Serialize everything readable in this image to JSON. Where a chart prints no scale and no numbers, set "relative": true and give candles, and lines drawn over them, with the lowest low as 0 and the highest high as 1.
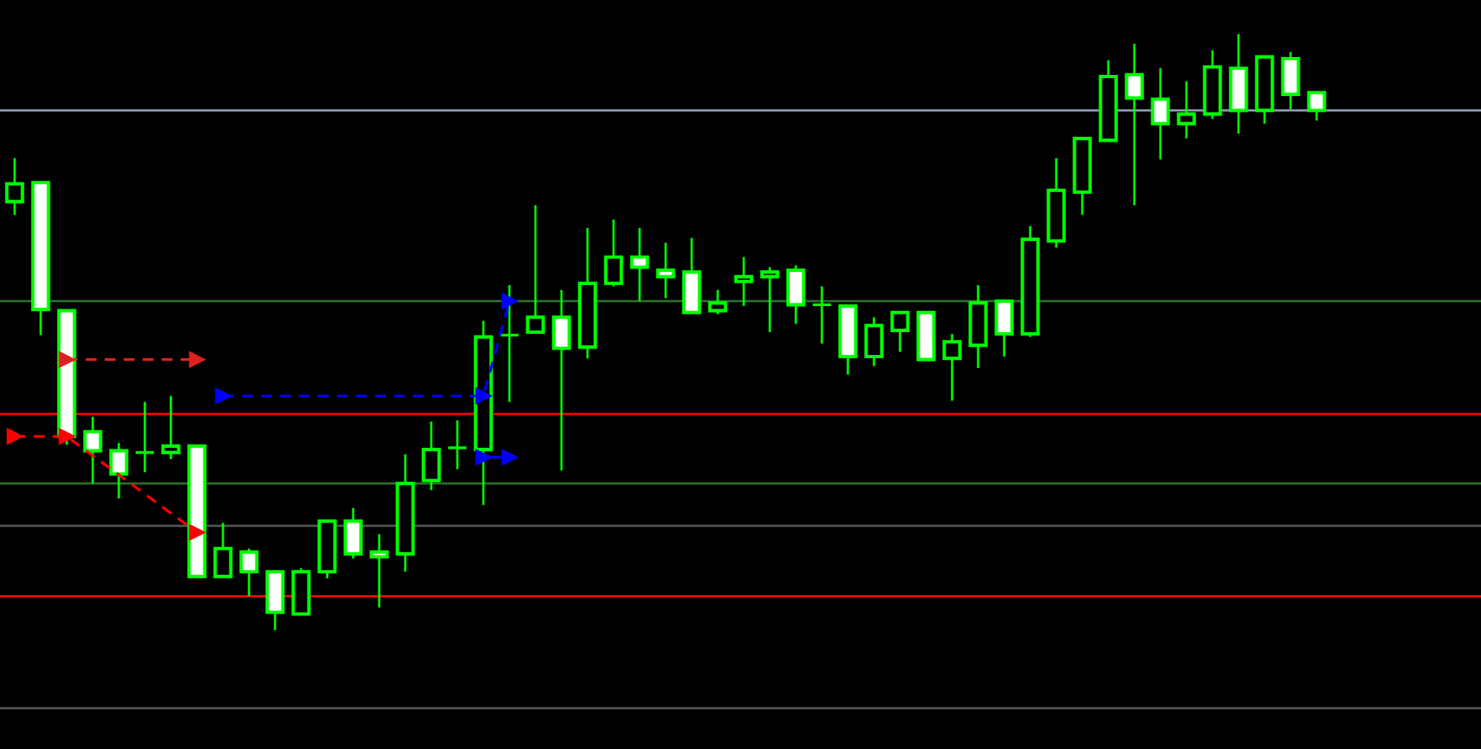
{
  "chart_data": {
    "type": "candlestick",
    "relative": true,
    "color": "#00ff00",
    "grid": false,
    "legend": false,
    "categories": [
      null,
      null,
      null,
      null,
      null,
      null,
      null,
      null,
      null,
      null,
      null,
      null,
      null,
      null,
      null,
      null,
      null,
      null,
      null,
      null,
      null,
      null,
      null,
      null,
      null,
      null,
      null,
      null,
      null,
      null,
      null,
      null,
      null,
      null,
      null,
      null,
      null,
      null,
      null,
      null,
      null,
      null,
      null,
      null,
      null,
      null,
      null,
      null,
      null,
      null,
      null
    ],
    "ohlc": [
      [
        0.719,
        0.792,
        0.697,
        0.749
      ],
      [
        0.751,
        0.751,
        0.495,
        0.538
      ],
      [
        0.536,
        0.536,
        0.311,
        0.325
      ],
      [
        0.333,
        0.358,
        0.246,
        0.301
      ],
      [
        0.301,
        0.314,
        0.221,
        0.262
      ],
      [
        0.298,
        0.383,
        0.265,
        0.298
      ],
      [
        0.298,
        0.393,
        0.287,
        0.309
      ],
      [
        0.309,
        0.309,
        0.09,
        0.09
      ],
      [
        0.09,
        0.18,
        0.09,
        0.137
      ],
      [
        0.131,
        0.137,
        0.057,
        0.098
      ],
      [
        0.098,
        0.098,
        0,
        0.03
      ],
      [
        0.027,
        0.104,
        0.027,
        0.098
      ],
      [
        0.098,
        0.183,
        0.087,
        0.183
      ],
      [
        0.183,
        0.205,
        0.12,
        0.128
      ],
      [
        0.131,
        0.161,
        0.038,
        0.123
      ],
      [
        0.128,
        0.295,
        0.098,
        0.246
      ],
      [
        0.251,
        0.35,
        0.235,
        0.303
      ],
      [
        0.306,
        0.352,
        0.27,
        0.306
      ],
      [
        0.303,
        0.519,
        0.21,
        0.492
      ],
      [
        0.495,
        0.579,
        0.383,
        0.495
      ],
      [
        0.5,
        0.713,
        0.5,
        0.525
      ],
      [
        0.525,
        0.571,
        0.268,
        0.473
      ],
      [
        0.475,
        0.675,
        0.456,
        0.582
      ],
      [
        0.582,
        0.689,
        0.577,
        0.626
      ],
      [
        0.626,
        0.675,
        0.552,
        0.609
      ],
      [
        0.604,
        0.65,
        0.557,
        0.593
      ],
      [
        0.601,
        0.658,
        0.533,
        0.533
      ],
      [
        0.536,
        0.571,
        0.53,
        0.549
      ],
      [
        0.585,
        0.626,
        0.544,
        0.593
      ],
      [
        0.593,
        0.609,
        0.5,
        0.601
      ],
      [
        0.604,
        0.612,
        0.514,
        0.546
      ],
      [
        0.546,
        0.577,
        0.481,
        0.546
      ],
      [
        0.544,
        0.544,
        0.429,
        0.459
      ],
      [
        0.459,
        0.525,
        0.443,
        0.511
      ],
      [
        0.503,
        0.533,
        0.467,
        0.533
      ],
      [
        0.533,
        0.533,
        0.454,
        0.454
      ],
      [
        0.456,
        0.497,
        0.385,
        0.484
      ],
      [
        0.478,
        0.579,
        0.44,
        0.549
      ],
      [
        0.552,
        0.555,
        0.459,
        0.497
      ],
      [
        0.497,
        0.678,
        0.492,
        0.656
      ],
      [
        0.653,
        0.792,
        0.642,
        0.738
      ],
      [
        0.735,
        0.825,
        0.697,
        0.825
      ],
      [
        0.822,
        0.956,
        0.822,
        0.929
      ],
      [
        0.932,
        0.984,
        0.713,
        0.893
      ],
      [
        0.891,
        0.943,
        0.79,
        0.85
      ],
      [
        0.85,
        0.921,
        0.825,
        0.866
      ],
      [
        0.866,
        0.973,
        0.858,
        0.945
      ],
      [
        0.943,
        1,
        0.833,
        0.872
      ],
      [
        0.872,
        0.964,
        0.85,
        0.962
      ],
      [
        0.959,
        0.97,
        0.874,
        0.899
      ],
      [
        0.902,
        0.902,
        0.855,
        0.872
      ]
    ],
    "series": [
      {
        "type": "line",
        "line_style": "dashed",
        "marker": "triangle",
        "color": "#ff0000",
        "values": [
          0.325,
          null,
          0.325,
          null,
          null,
          null,
          null,
          0.164,
          null,
          null,
          null,
          null,
          null,
          null,
          null,
          null,
          null,
          null,
          null,
          null,
          null,
          null,
          null,
          null,
          null,
          null,
          null,
          null,
          null,
          null,
          null,
          null,
          null,
          null,
          null,
          null,
          null,
          null,
          null,
          null,
          null,
          null,
          null,
          null,
          null,
          null,
          null,
          null,
          null,
          null,
          null
        ]
      },
      {
        "type": "line",
        "line_style": "dashed",
        "marker": "triangle",
        "color": "#e02020",
        "values": [
          null,
          null,
          0.454,
          null,
          null,
          null,
          null,
          0.454,
          null,
          null,
          null,
          null,
          null,
          null,
          null,
          null,
          null,
          null,
          null,
          null,
          null,
          null,
          null,
          null,
          null,
          null,
          null,
          null,
          null,
          null,
          null,
          null,
          null,
          null,
          null,
          null,
          null,
          null,
          null,
          null,
          null,
          null,
          null,
          null,
          null,
          null,
          null,
          null,
          null,
          null,
          null
        ]
      },
      {
        "type": "line",
        "line_style": "dashed",
        "marker": "triangle",
        "color": "#0000ff",
        "values": [
          null,
          null,
          null,
          null,
          null,
          null,
          null,
          null,
          0.393,
          null,
          null,
          null,
          null,
          null,
          null,
          null,
          null,
          null,
          0.393,
          0.552,
          null,
          null,
          null,
          null,
          null,
          null,
          null,
          null,
          null,
          null,
          null,
          null,
          null,
          null,
          null,
          null,
          null,
          null,
          null,
          null,
          null,
          null,
          null,
          null,
          null,
          null,
          null,
          null,
          null,
          null,
          null
        ]
      },
      {
        "type": "line",
        "line_style": "solid",
        "marker": "triangle",
        "color": "#0000ff",
        "values": [
          null,
          null,
          null,
          null,
          null,
          null,
          null,
          null,
          null,
          null,
          null,
          null,
          null,
          null,
          null,
          null,
          null,
          null,
          0.29,
          0.29,
          null,
          null,
          null,
          null,
          null,
          null,
          null,
          null,
          null,
          null,
          null,
          null,
          null,
          null,
          null,
          null,
          null,
          null,
          null,
          null,
          null,
          null,
          null,
          null,
          null,
          null,
          null,
          null,
          null,
          null,
          null
        ]
      }
    ],
    "ref_lines": [
      {
        "axis": "y",
        "value": 0.872,
        "color": "#8a9bb5"
      },
      {
        "axis": "y",
        "value": 0.552,
        "color": "#2e6e2e"
      },
      {
        "axis": "y",
        "value": 0.363,
        "color": "#ff0000"
      },
      {
        "axis": "y",
        "value": 0.246,
        "color": "#2e6e2e"
      },
      {
        "axis": "y",
        "value": 0.175,
        "color": "#555555"
      },
      {
        "axis": "y",
        "value": 0.057,
        "color": "#ff0000"
      },
      {
        "axis": "y",
        "value": -0.131,
        "color": "#555555"
      }
    ]
  }
}
